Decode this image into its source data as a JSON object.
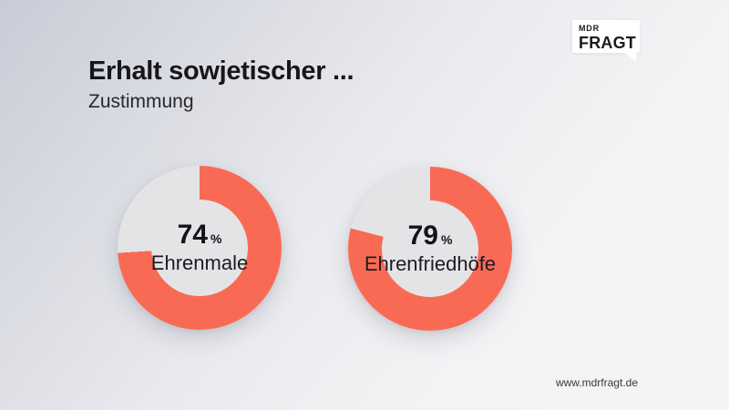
{
  "header": {
    "title": "Erhalt sowjetischer ...",
    "subtitle": "Zustimmung"
  },
  "logo": {
    "line1": "MDR",
    "line2": "FRAGT"
  },
  "footer": {
    "url": "www.mdrfragt.de"
  },
  "colors": {
    "accent": "#F96A55",
    "ring_bg": "#E4E4E7",
    "text_strong": "#17171B",
    "text": "#27272C",
    "background_start": "#C9CCD7",
    "background_end": "#F4F4F5",
    "logo_background": "#FFFFFF"
  },
  "chart_data": {
    "type": "pie",
    "subtype": "donut",
    "title": "Erhalt sowjetischer ...",
    "subtitle": "Zustimmung",
    "unit": "%",
    "start_angle_deg": 0,
    "direction": "clockwise",
    "accent_color": "#F96A55",
    "remainder_color": "#E4E4E7",
    "charts": [
      {
        "label": "Ehrenmale",
        "value": 74,
        "unit": "%"
      },
      {
        "label": "Ehrenfriedhöfe",
        "value": 79,
        "unit": "%"
      }
    ]
  }
}
